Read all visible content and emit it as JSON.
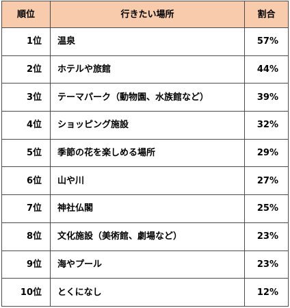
{
  "table": {
    "headers": {
      "rank": "順位",
      "place": "行きたい場所",
      "percent": "割合"
    },
    "header_bg_color": "#f8cbad",
    "rows": [
      {
        "rank": "1位",
        "place": "温泉",
        "percent": "57%"
      },
      {
        "rank": "2位",
        "place": "ホテルや旅館",
        "percent": "44%"
      },
      {
        "rank": "3位",
        "place": "テーマパーク（動物園、水族館など）",
        "percent": "39%"
      },
      {
        "rank": "4位",
        "place": "ショッピング施設",
        "percent": "32%"
      },
      {
        "rank": "5位",
        "place": "季節の花を楽しめる場所",
        "percent": "29%"
      },
      {
        "rank": "6位",
        "place": "山や川",
        "percent": "27%"
      },
      {
        "rank": "7位",
        "place": "神社仏閣",
        "percent": "25%"
      },
      {
        "rank": "8位",
        "place": "文化施設（美術館、劇場など）",
        "percent": "23%"
      },
      {
        "rank": "9位",
        "place": "海やプール",
        "percent": "23%"
      },
      {
        "rank": "10位",
        "place": "とくになし",
        "percent": "12%"
      }
    ]
  }
}
